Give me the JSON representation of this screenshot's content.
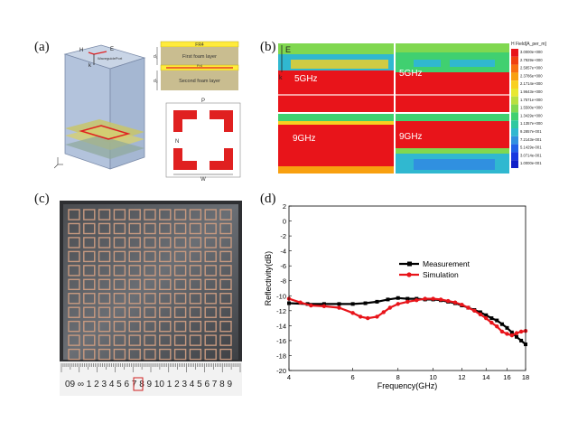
{
  "panels": {
    "a": {
      "label": "(a)",
      "axis_labels": {
        "h": "H",
        "e": "E",
        "k": "k"
      },
      "port_text": "WaveguidePort",
      "stack_layers": {
        "fr4_top": "FR4",
        "first_foam": "First foam layer",
        "fr4_mid": "Fr4",
        "second_foam": "Second foam layer"
      },
      "stack_dims": {
        "d1": "d₁",
        "d2": "d₂"
      },
      "unit_cell_dims": {
        "p": "P",
        "n": "N",
        "w": "W"
      }
    },
    "b": {
      "label": "(b)",
      "field_labels": {
        "e": "E",
        "k": "k",
        "tl": "5GHz",
        "tr": "5GHz",
        "bl": "9GHz",
        "br": "9GHz"
      },
      "legend_title": "H Field[A_per_m]",
      "legend_values": [
        "3.0000e+000",
        "2.7929e+000",
        "2.5857e+000",
        "2.3786e+000",
        "2.1714e+000",
        "1.9643e+000",
        "1.7571e+000",
        "1.5500e+000",
        "1.3429e+000",
        "1.1357e+000",
        "9.2857e-001",
        "7.2143e-001",
        "5.1429e-001",
        "3.0714e-001",
        "1.0000e-001"
      ],
      "legend_colors": [
        "#e8141a",
        "#f04010",
        "#f87010",
        "#f8a010",
        "#f8d020",
        "#e8e830",
        "#b8e040",
        "#80d850",
        "#40d070",
        "#30c8a0",
        "#30b8d0",
        "#3090e0",
        "#2060e8",
        "#1838e0",
        "#1020c8"
      ]
    },
    "c": {
      "label": "(c)",
      "ruler_text": "09  ∞ 1 2 3 4 5 6 7 8 9 10 1 2 3 4 5 6 7 8 9"
    },
    "d": {
      "label": "(d)"
    }
  },
  "chart_data": {
    "type": "line",
    "xlabel": "Frequency(GHz)",
    "ylabel": "Reflectivity(dB)",
    "xscale": "log",
    "xlim": [
      4,
      18
    ],
    "ylim": [
      -20,
      2
    ],
    "xticks": [
      4,
      6,
      8,
      10,
      12,
      14,
      16,
      18
    ],
    "yticks": [
      2,
      0,
      -2,
      -4,
      -6,
      -8,
      -10,
      -12,
      -14,
      -16,
      -18,
      -20
    ],
    "legend_position": "center-right",
    "series": [
      {
        "name": "Measurement",
        "color": "#000000",
        "marker": "square",
        "x": [
          4,
          4.5,
          5,
          5.5,
          6,
          6.5,
          7,
          7.5,
          8,
          8.5,
          9,
          9.5,
          10,
          10.5,
          11,
          11.5,
          12,
          12.5,
          13,
          13.5,
          14,
          14.5,
          15,
          15.5,
          16,
          16.5,
          17,
          17.5,
          18
        ],
        "y": [
          -11.0,
          -11.1,
          -11.1,
          -11.1,
          -11.1,
          -11.0,
          -10.8,
          -10.5,
          -10.3,
          -10.4,
          -10.4,
          -10.5,
          -10.5,
          -10.6,
          -10.8,
          -11.0,
          -11.3,
          -11.6,
          -11.9,
          -12.2,
          -12.6,
          -13.0,
          -13.3,
          -13.8,
          -14.3,
          -14.9,
          -15.5,
          -16.0,
          -16.5
        ]
      },
      {
        "name": "Simulation",
        "color": "#e8141a",
        "marker": "circle",
        "x": [
          4,
          4.3,
          4.6,
          5,
          5.5,
          6,
          6.3,
          6.6,
          7,
          7.3,
          7.6,
          8,
          8.5,
          9,
          9.5,
          10,
          10.5,
          11,
          11.5,
          12,
          12.5,
          13,
          13.5,
          14,
          14.5,
          15,
          15.5,
          16,
          16.5,
          17,
          17.5,
          18
        ],
        "y": [
          -10.4,
          -10.9,
          -11.3,
          -11.4,
          -11.6,
          -12.3,
          -12.8,
          -13.0,
          -12.8,
          -12.2,
          -11.6,
          -11.1,
          -10.8,
          -10.6,
          -10.4,
          -10.4,
          -10.5,
          -10.7,
          -10.9,
          -11.2,
          -11.6,
          -12.0,
          -12.5,
          -13.0,
          -13.6,
          -14.1,
          -14.8,
          -15.1,
          -15.3,
          -15.0,
          -14.8,
          -14.7
        ]
      }
    ]
  }
}
